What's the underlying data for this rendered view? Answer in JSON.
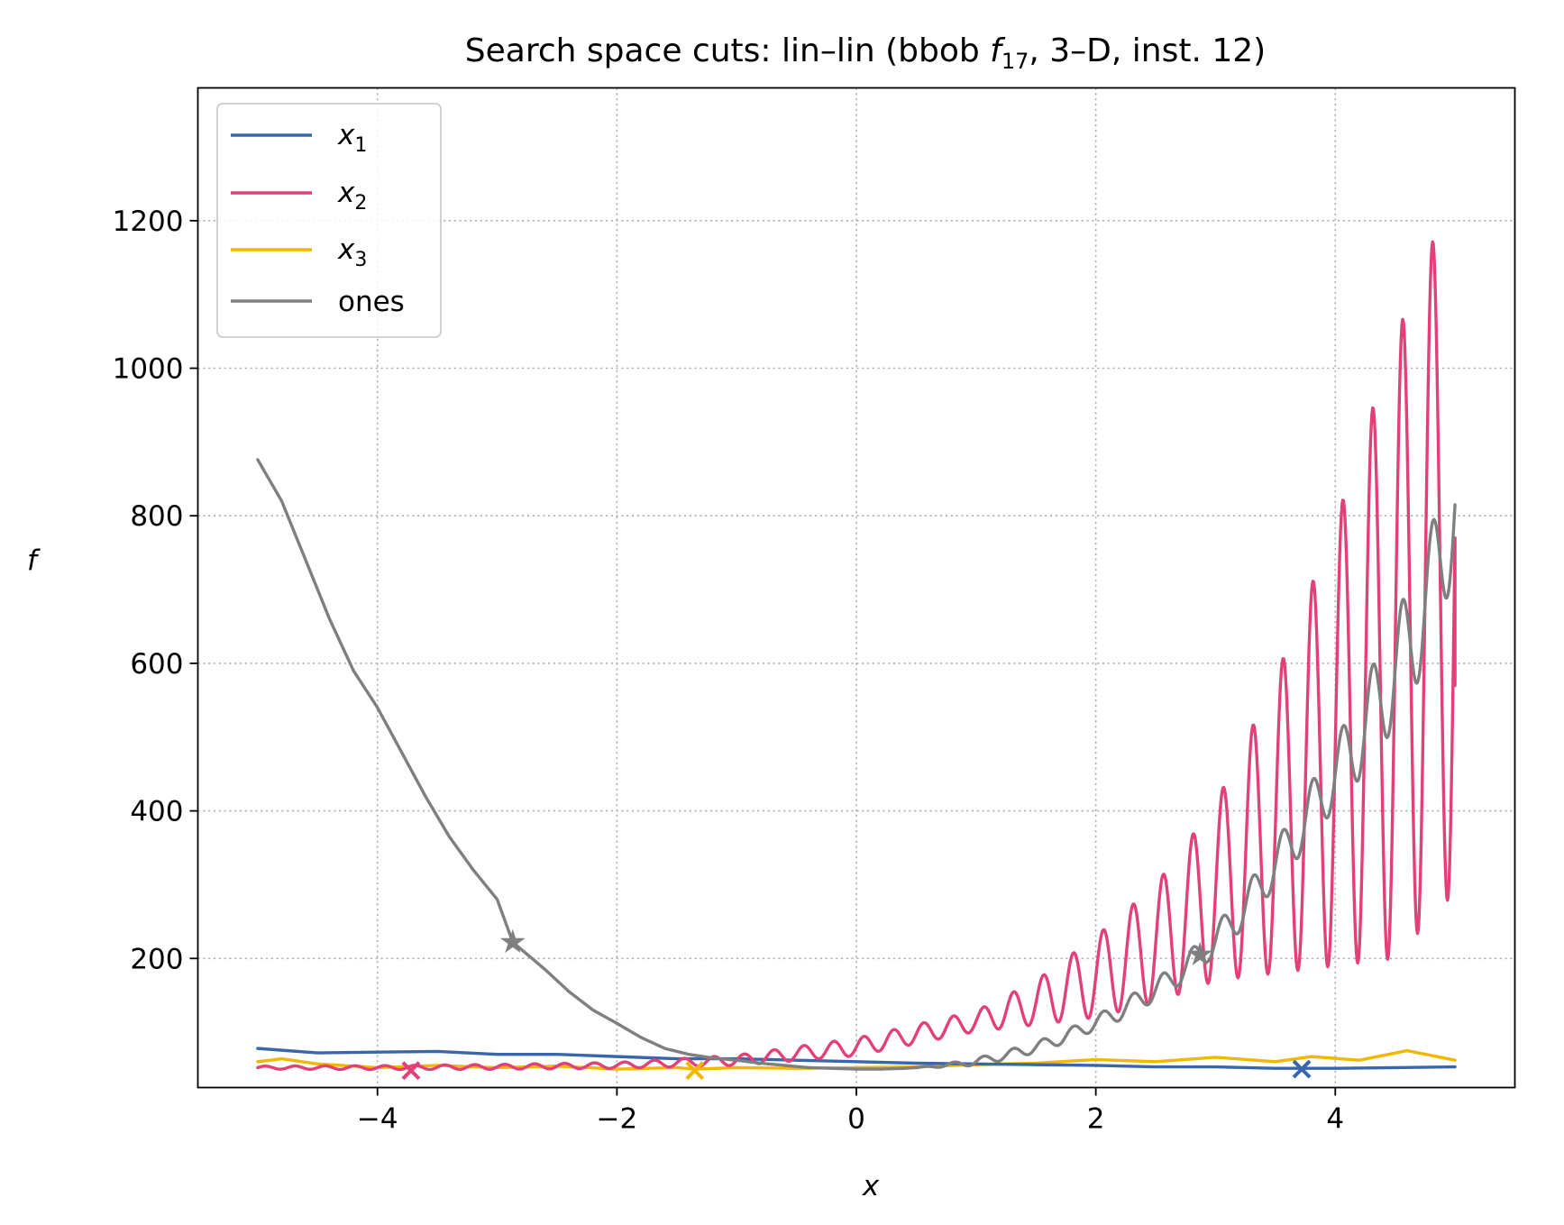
{
  "chart_data": {
    "type": "line",
    "title": {
      "prefix": "Search space cuts: lin–lin (bbob ",
      "f": "f",
      "sub": "17",
      "suffix": ", 3–D, inst. 12)"
    },
    "xlabel": "x",
    "ylabel": "f",
    "xlim": [
      -5.5,
      5.5
    ],
    "ylim": [
      25,
      1380
    ],
    "xticks": [
      -4,
      -2,
      0,
      2,
      4
    ],
    "xtick_labels": [
      "−4",
      "−2",
      "0",
      "2",
      "4"
    ],
    "yticks": [
      200,
      400,
      600,
      800,
      1000,
      1200
    ],
    "ytick_labels": [
      "200",
      "400",
      "600",
      "800",
      "1000",
      "1200"
    ],
    "grid": true,
    "legend_position": "top-left",
    "series": [
      {
        "key": "x1",
        "name": "x",
        "sub": "1",
        "color": "#3a67ab",
        "points": [
          [
            -5.0,
            78
          ],
          [
            -4.5,
            72
          ],
          [
            -4.0,
            73
          ],
          [
            -3.5,
            74
          ],
          [
            -3.0,
            70
          ],
          [
            -2.5,
            70
          ],
          [
            -2.0,
            67
          ],
          [
            -1.5,
            64
          ],
          [
            -1.0,
            64
          ],
          [
            -0.5,
            62
          ],
          [
            0.0,
            60
          ],
          [
            0.5,
            58
          ],
          [
            1.0,
            57
          ],
          [
            1.5,
            56
          ],
          [
            2.0,
            55
          ],
          [
            2.5,
            53
          ],
          [
            3.0,
            53
          ],
          [
            3.5,
            51
          ],
          [
            4.0,
            51
          ],
          [
            4.5,
            52
          ],
          [
            5.0,
            53
          ]
        ],
        "marker": {
          "symbol": "x",
          "x": 3.72,
          "y": 50
        }
      },
      {
        "key": "x2",
        "name": "x",
        "sub": "2",
        "color": "#e3407a",
        "base_curve": [
          [
            -5.0,
            52
          ],
          [
            -4.0,
            52
          ],
          [
            -3.0,
            53
          ],
          [
            -2.0,
            55
          ],
          [
            -1.0,
            62
          ],
          [
            0.0,
            80
          ],
          [
            1.0,
            115
          ],
          [
            1.5,
            140
          ],
          [
            2.0,
            175
          ],
          [
            2.5,
            220
          ],
          [
            3.0,
            290
          ],
          [
            3.5,
            380
          ],
          [
            4.0,
            490
          ],
          [
            4.5,
            620
          ],
          [
            5.0,
            770
          ]
        ],
        "oscillation_amplitude": [
          [
            -5.0,
            2
          ],
          [
            -2.0,
            4
          ],
          [
            -1.0,
            7
          ],
          [
            0.0,
            12
          ],
          [
            1.0,
            14
          ],
          [
            1.5,
            30
          ],
          [
            2.0,
            55
          ],
          [
            2.5,
            80
          ],
          [
            3.0,
            120
          ],
          [
            3.5,
            200
          ],
          [
            4.0,
            300
          ],
          [
            4.5,
            420
          ],
          [
            5.0,
            480
          ]
        ],
        "oscillation_period": 0.25,
        "endpoint": [
          5.0,
          570
        ],
        "marker": {
          "symbol": "x",
          "x": -3.72,
          "y": 48
        }
      },
      {
        "key": "x3",
        "name": "x",
        "sub": "3",
        "color": "#f2b705",
        "points": [
          [
            -5.0,
            60
          ],
          [
            -4.8,
            64
          ],
          [
            -4.5,
            57
          ],
          [
            -4.0,
            52
          ],
          [
            -3.5,
            55
          ],
          [
            -3.0,
            52
          ],
          [
            -2.5,
            54
          ],
          [
            -2.0,
            50
          ],
          [
            -1.5,
            52
          ],
          [
            -1.35,
            50
          ],
          [
            -1.0,
            52
          ],
          [
            -0.5,
            51
          ],
          [
            0.0,
            52
          ],
          [
            0.5,
            53
          ],
          [
            1.0,
            56
          ],
          [
            1.5,
            58
          ],
          [
            2.0,
            63
          ],
          [
            2.5,
            60
          ],
          [
            3.0,
            66
          ],
          [
            3.5,
            60
          ],
          [
            3.8,
            67
          ],
          [
            4.2,
            62
          ],
          [
            4.6,
            75
          ],
          [
            5.0,
            62
          ]
        ],
        "marker": {
          "symbol": "x",
          "x": -1.35,
          "y": 48
        }
      },
      {
        "key": "ones",
        "name": "ones",
        "color": "#7f7f7f",
        "points": [
          [
            -5.0,
            876
          ],
          [
            -4.8,
            820
          ],
          [
            -4.6,
            740
          ],
          [
            -4.4,
            660
          ],
          [
            -4.2,
            590
          ],
          [
            -4.0,
            540
          ],
          [
            -3.8,
            480
          ],
          [
            -3.6,
            420
          ],
          [
            -3.4,
            365
          ],
          [
            -3.2,
            320
          ],
          [
            -3.0,
            280
          ],
          [
            -2.87,
            222
          ],
          [
            -2.6,
            185
          ],
          [
            -2.4,
            155
          ],
          [
            -2.2,
            130
          ],
          [
            -2.0,
            112
          ],
          [
            -1.8,
            93
          ],
          [
            -1.6,
            78
          ],
          [
            -1.4,
            70
          ],
          [
            -1.2,
            65
          ],
          [
            -1.0,
            62
          ],
          [
            -0.8,
            58
          ],
          [
            -0.6,
            55
          ],
          [
            -0.4,
            52
          ],
          [
            -0.2,
            51
          ],
          [
            0.0,
            50
          ],
          [
            0.2,
            50
          ],
          [
            0.4,
            51
          ],
          [
            0.6,
            53
          ],
          [
            0.8,
            56
          ],
          [
            1.0,
            60
          ],
          [
            1.2,
            67
          ],
          [
            1.4,
            75
          ],
          [
            1.6,
            85
          ],
          [
            1.8,
            98
          ],
          [
            2.0,
            113
          ],
          [
            2.2,
            128
          ],
          [
            2.4,
            148
          ],
          [
            2.6,
            168
          ],
          [
            2.87,
            205
          ],
          [
            3.0,
            225
          ],
          [
            3.2,
            260
          ],
          [
            3.4,
            305
          ],
          [
            3.6,
            350
          ],
          [
            3.8,
            400
          ],
          [
            4.0,
            450
          ],
          [
            4.2,
            500
          ],
          [
            4.4,
            560
          ],
          [
            4.6,
            620
          ],
          [
            4.8,
            700
          ],
          [
            5.0,
            815
          ]
        ],
        "oscillation_amplitude": [
          [
            -5.0,
            0
          ],
          [
            0.5,
            0
          ],
          [
            1.0,
            5
          ],
          [
            2.0,
            10
          ],
          [
            3.0,
            20
          ],
          [
            3.5,
            30
          ],
          [
            4.0,
            45
          ],
          [
            4.5,
            75
          ],
          [
            5.0,
            90
          ]
        ],
        "oscillation_period": 0.25,
        "marker": {
          "symbol": "star",
          "points": [
            [
              -2.87,
              222
            ],
            [
              2.87,
              205
            ]
          ]
        }
      }
    ]
  }
}
